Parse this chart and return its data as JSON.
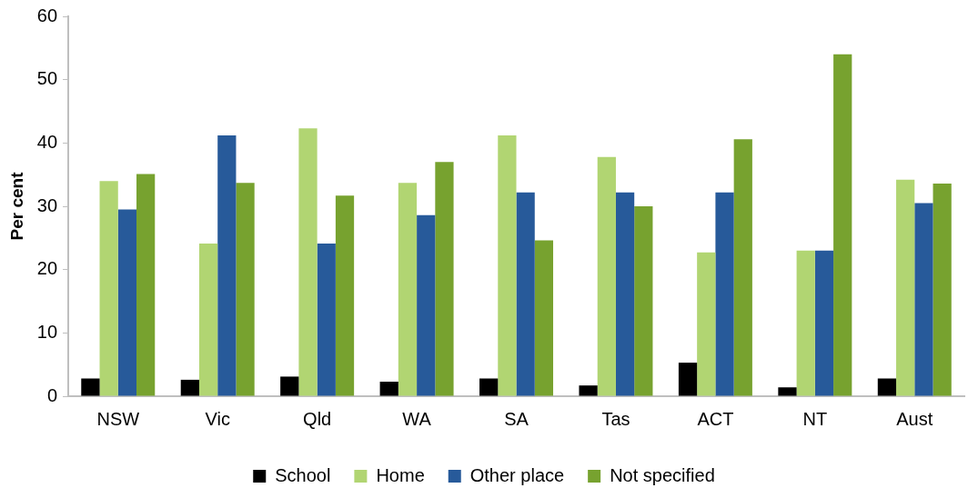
{
  "chart_data": {
    "type": "bar",
    "ylabel": "Per cent",
    "categories": [
      "NSW",
      "Vic",
      "Qld",
      "WA",
      "SA",
      "Tas",
      "ACT",
      "NT",
      "Aust"
    ],
    "series": [
      {
        "name": "School",
        "color": "#000000",
        "values": [
          2.8,
          2.6,
          3.1,
          2.3,
          2.8,
          1.7,
          5.3,
          1.4,
          2.8
        ]
      },
      {
        "name": "Home",
        "color": "#b1d572",
        "values": [
          34,
          24.1,
          42.3,
          33.7,
          41.2,
          37.8,
          22.7,
          23,
          34.2
        ]
      },
      {
        "name": "Other place",
        "color": "#275a9a",
        "values": [
          29.5,
          41.2,
          24.1,
          28.6,
          32.2,
          32.2,
          32.2,
          23,
          30.5
        ]
      },
      {
        "name": "Not specified",
        "color": "#77a22f",
        "values": [
          35.1,
          33.7,
          31.7,
          37,
          24.6,
          30,
          40.6,
          54,
          33.6
        ]
      }
    ],
    "ylim": [
      0,
      60
    ],
    "yticks": [
      0,
      10,
      20,
      30,
      40,
      50,
      60
    ],
    "grid": false,
    "legend": "bottom"
  }
}
